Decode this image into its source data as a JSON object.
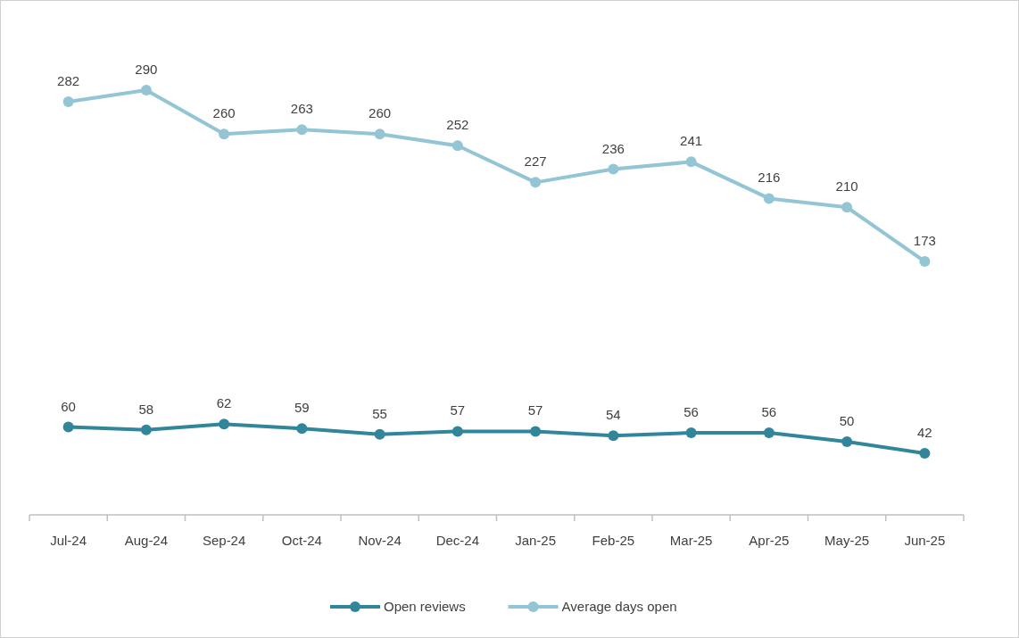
{
  "chart_data": {
    "type": "line",
    "categories": [
      "Jul-24",
      "Aug-24",
      "Sep-24",
      "Oct-24",
      "Nov-24",
      "Dec-24",
      "Jan-25",
      "Feb-25",
      "Mar-25",
      "Apr-25",
      "May-25",
      "Jun-25"
    ],
    "series": [
      {
        "name": "Open reviews",
        "color": "#31869b",
        "values": [
          60,
          58,
          62,
          59,
          55,
          57,
          57,
          54,
          56,
          56,
          50,
          42
        ]
      },
      {
        "name": "Average days open",
        "color": "#93c5d5",
        "values": [
          282,
          290,
          260,
          263,
          260,
          252,
          227,
          236,
          241,
          216,
          210,
          173
        ]
      }
    ],
    "data_labels": true,
    "marker": "circle",
    "line_style": "solid",
    "legend": "bottom"
  }
}
